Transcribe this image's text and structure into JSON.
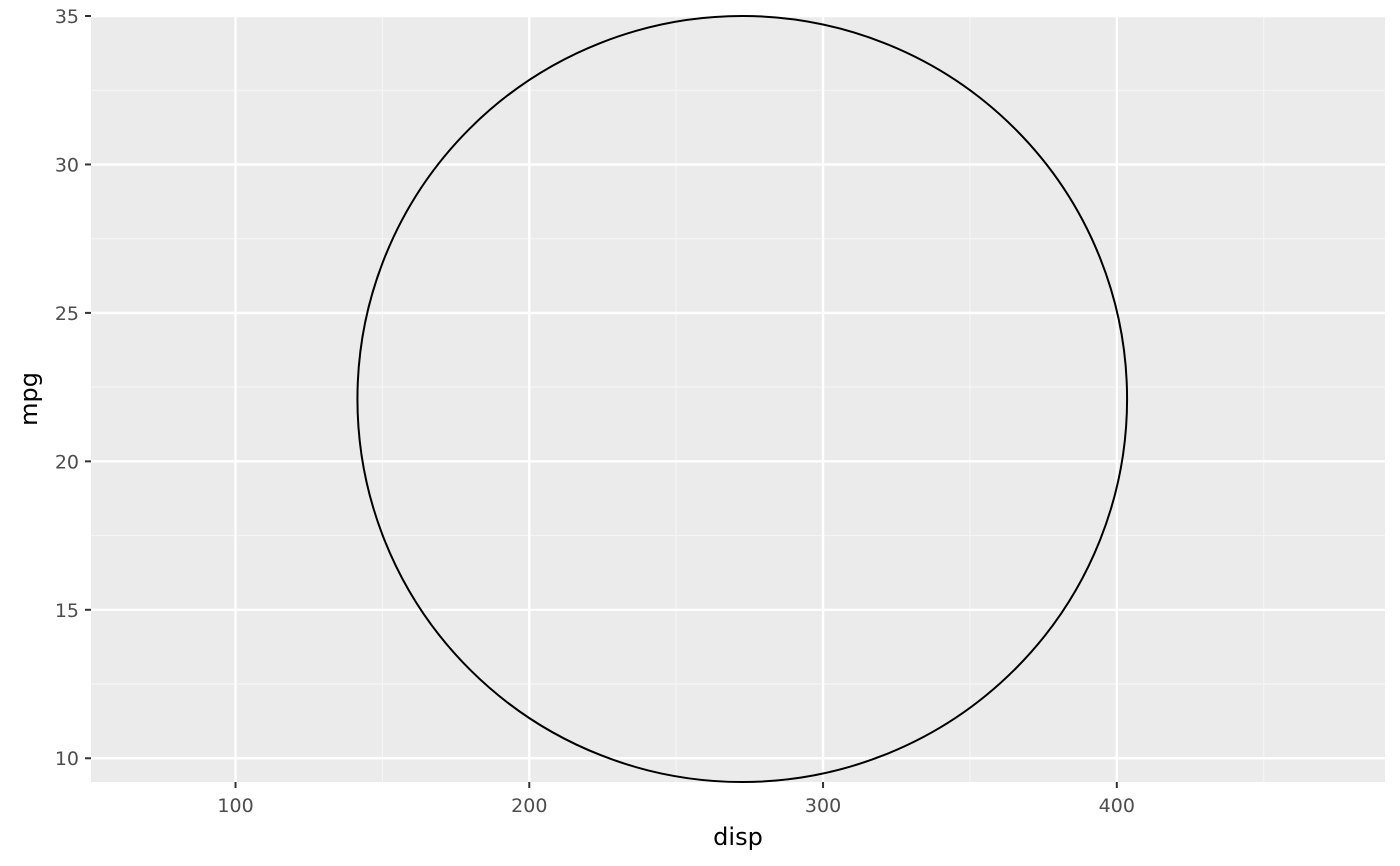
{
  "chart_data": {
    "type": "scatter",
    "title": "",
    "xlabel": "disp",
    "ylabel": "mpg",
    "xlim": [
      50.8,
      491.3
    ],
    "ylim": [
      9.2,
      35.0
    ],
    "x_ticks": [
      100,
      200,
      300,
      400
    ],
    "x_tick_labels": [
      "100",
      "200",
      "300",
      "400"
    ],
    "y_ticks": [
      10,
      15,
      20,
      25,
      30,
      35
    ],
    "y_tick_labels": [
      "10",
      "15",
      "20",
      "25",
      "30",
      "35"
    ],
    "x_minor_ticks": [
      150,
      250,
      350,
      450
    ],
    "y_minor_ticks": [
      12.5,
      17.5,
      22.5,
      27.5,
      32.5
    ],
    "grid": true,
    "legend": "none",
    "shapes": [
      {
        "type": "ellipse",
        "center_x": 272.5,
        "center_y": 22.1,
        "half_width_x": 131.0,
        "half_height_y": 12.9,
        "stroke": "#000000",
        "fill": "none"
      }
    ]
  },
  "colors": {
    "panel_background": "#ebebeb",
    "grid_major": "#ffffff",
    "grid_minor": "#f5f5f5",
    "axis_tick": "#333333",
    "tick_label": "#4d4d4d",
    "axis_title": "#000000"
  }
}
